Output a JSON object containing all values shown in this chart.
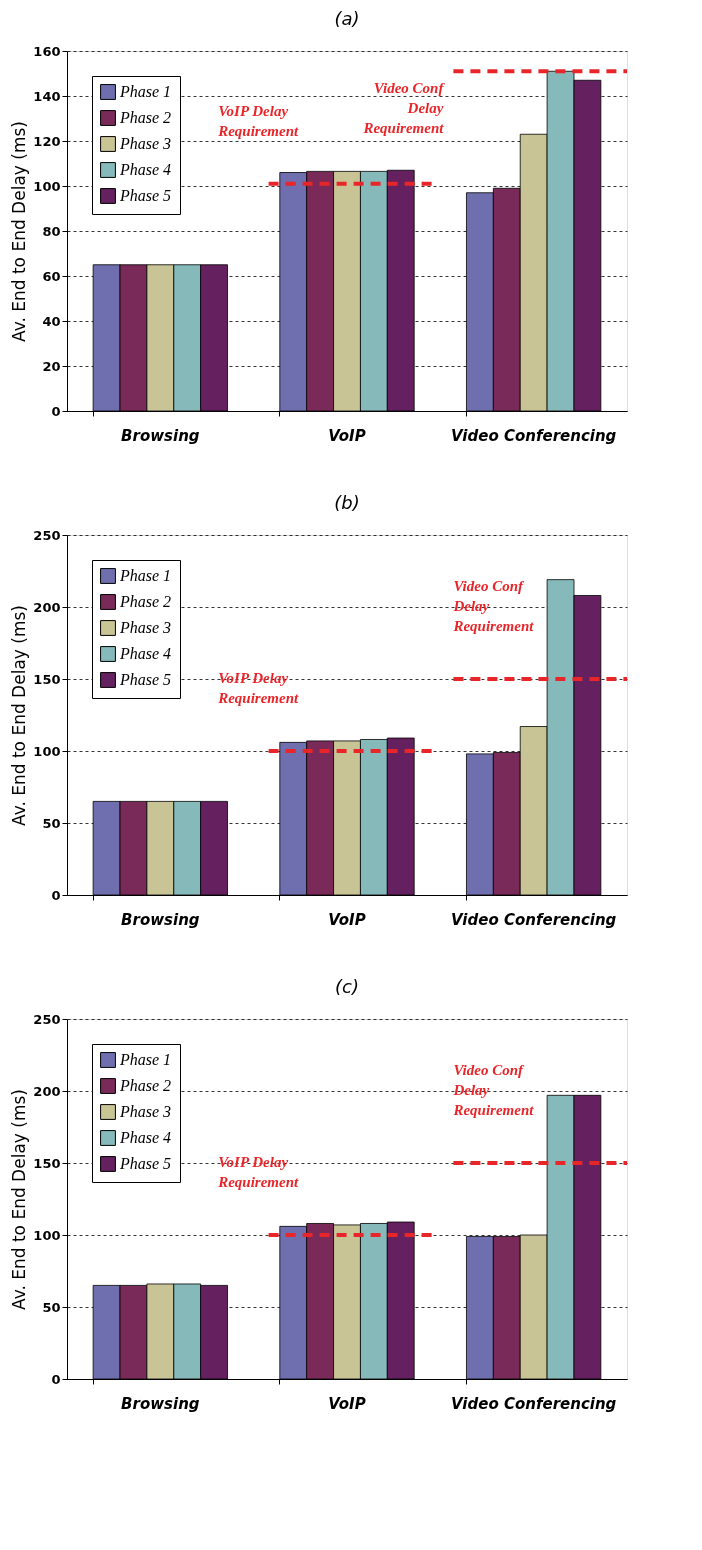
{
  "chart_data": [
    {
      "type": "bar",
      "title": "(a)",
      "ylabel": "Av. End to End Delay (ms)",
      "categories": [
        "Browsing",
        "VoIP",
        "Video Conferencing"
      ],
      "series": [
        {
          "name": "Phase 1",
          "color": "#6f6fb0",
          "values": [
            65,
            106,
            97
          ]
        },
        {
          "name": "Phase 2",
          "color": "#7a2a58",
          "values": [
            65,
            106.5,
            99
          ]
        },
        {
          "name": "Phase 3",
          "color": "#c9c496",
          "values": [
            65,
            106.5,
            123
          ]
        },
        {
          "name": "Phase 4",
          "color": "#86b9b9",
          "values": [
            65,
            106.5,
            151
          ]
        },
        {
          "name": "Phase 5",
          "color": "#64205f",
          "values": [
            65,
            107,
            147
          ]
        }
      ],
      "ylim": [
        0,
        160
      ],
      "yticks": [
        0,
        20,
        40,
        60,
        80,
        100,
        120,
        140,
        160
      ],
      "grid": "y",
      "legend": "top left",
      "ref_lines": [
        {
          "axis": "y",
          "value": 101,
          "label": "VoIP Delay\nRequirement",
          "color": "#e8262a",
          "line_style": "dashed"
        },
        {
          "axis": "y",
          "value": 151,
          "label": "Video Conf\nDelay\nRequirement",
          "color": "#e8262a",
          "line_style": "dashed"
        }
      ]
    },
    {
      "type": "bar",
      "title": "(b)",
      "ylabel": "Av. End to End Delay (ms)",
      "categories": [
        "Browsing",
        "VoIP",
        "Video Conferencing"
      ],
      "series": [
        {
          "name": "Phase 1",
          "color": "#6f6fb0",
          "values": [
            65,
            106,
            98
          ]
        },
        {
          "name": "Phase 2",
          "color": "#7a2a58",
          "values": [
            65,
            107,
            99
          ]
        },
        {
          "name": "Phase 3",
          "color": "#c9c496",
          "values": [
            65,
            107,
            117
          ]
        },
        {
          "name": "Phase 4",
          "color": "#86b9b9",
          "values": [
            65,
            108,
            219
          ]
        },
        {
          "name": "Phase 5",
          "color": "#64205f",
          "values": [
            65,
            109,
            208
          ]
        }
      ],
      "ylim": [
        0,
        250
      ],
      "yticks": [
        0,
        50,
        100,
        150,
        200,
        250
      ],
      "grid": "y",
      "legend": "top left",
      "ref_lines": [
        {
          "axis": "y",
          "value": 100,
          "label": "VoIP Delay\nRequirement",
          "color": "#e8262a",
          "line_style": "dashed"
        },
        {
          "axis": "y",
          "value": 150,
          "label": "Video Conf\nDelay\nRequirement",
          "color": "#e8262a",
          "line_style": "dashed"
        }
      ]
    },
    {
      "type": "bar",
      "title": "(c)",
      "ylabel": "Av. End to End Delay (ms)",
      "categories": [
        "Browsing",
        "VoIP",
        "Video Conferencing"
      ],
      "series": [
        {
          "name": "Phase 1",
          "color": "#6f6fb0",
          "values": [
            65,
            106,
            99
          ]
        },
        {
          "name": "Phase 2",
          "color": "#7a2a58",
          "values": [
            65,
            108,
            99
          ]
        },
        {
          "name": "Phase 3",
          "color": "#c9c496",
          "values": [
            66,
            107,
            100
          ]
        },
        {
          "name": "Phase 4",
          "color": "#86b9b9",
          "values": [
            66,
            108,
            197
          ]
        },
        {
          "name": "Phase 5",
          "color": "#64205f",
          "values": [
            65,
            109,
            197
          ]
        }
      ],
      "ylim": [
        0,
        250
      ],
      "yticks": [
        0,
        50,
        100,
        150,
        200,
        250
      ],
      "grid": "y",
      "legend": "top left",
      "ref_lines": [
        {
          "axis": "y",
          "value": 100,
          "label": "VoIP Delay\nRequirement",
          "color": "#e8262a",
          "line_style": "dashed"
        },
        {
          "axis": "y",
          "value": 150,
          "label": "Video Conf\nDelay\nRequirement",
          "color": "#e8262a",
          "line_style": "dashed"
        }
      ]
    }
  ]
}
